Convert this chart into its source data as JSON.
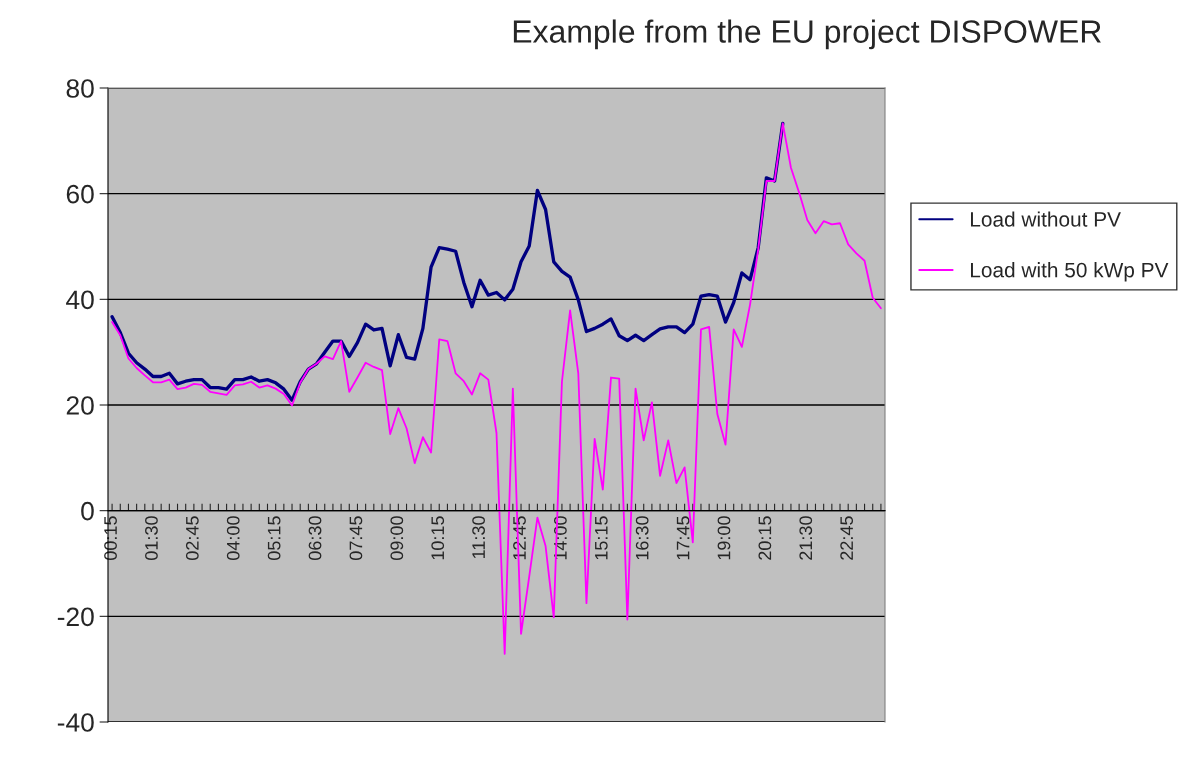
{
  "chart_data": {
    "type": "line",
    "title": "Example from the EU project DISPOWER",
    "categories": [
      "00:15",
      null,
      null,
      null,
      null,
      "01:30",
      null,
      null,
      null,
      null,
      "02:45",
      null,
      null,
      null,
      null,
      "04:00",
      null,
      null,
      null,
      null,
      "05:15",
      null,
      null,
      null,
      null,
      "06:30",
      null,
      null,
      null,
      null,
      "07:45",
      null,
      null,
      null,
      null,
      "09:00",
      null,
      null,
      null,
      null,
      "10:15",
      null,
      null,
      null,
      null,
      "11:30",
      null,
      null,
      null,
      null,
      "12:45",
      null,
      null,
      null,
      null,
      "14:00",
      null,
      null,
      null,
      null,
      "15:15",
      null,
      null,
      null,
      null,
      "16:30",
      null,
      null,
      null,
      null,
      "17:45",
      null,
      null,
      null,
      null,
      "19:00",
      null,
      null,
      null,
      null,
      "20:15",
      null,
      null,
      null,
      null,
      "21:30",
      null,
      null,
      null,
      null,
      "22:45",
      null,
      null,
      null,
      null
    ],
    "series": [
      {
        "name": "Load without PV",
        "color": "#000080",
        "values": [
          36.7,
          33.7,
          29.8,
          28,
          26.8,
          25.4,
          25.4,
          26,
          24,
          24.5,
          24.8,
          24.8,
          23.3,
          23.3,
          23,
          24.8,
          24.8,
          25.3,
          24.5,
          24.8,
          24.2,
          23,
          20.9,
          24.4,
          26.8,
          27.8,
          30,
          32.1,
          32.1,
          29.2,
          31.8,
          35.3,
          34.2,
          34.5,
          27.4,
          33.3,
          29,
          28.7,
          34.5,
          46.1,
          49.8,
          49.5,
          49.1,
          43.2,
          38.6,
          43.6,
          40.8,
          41.3,
          39.9,
          41.9,
          47.1,
          50.1,
          60.6,
          57,
          47.1,
          45.3,
          44.2,
          39.9,
          33.9,
          34.5,
          35.3,
          36.3,
          33.1,
          32.2,
          33.2,
          32.2,
          33.3,
          34.4,
          34.8,
          34.8,
          33.7,
          35.3,
          40.6,
          40.9,
          40.6,
          35.7,
          39.4,
          45,
          43.7,
          49.8,
          63,
          62.4,
          73.3,
          null,
          null,
          null,
          null,
          null,
          null,
          null,
          null,
          null,
          null,
          null,
          null
        ]
      },
      {
        "name": "Load with 50 kWp PV",
        "color": "#ff00ff",
        "values": [
          35.7,
          33.2,
          28.8,
          27,
          25.6,
          24.3,
          24.3,
          24.8,
          23,
          23.3,
          24,
          23.8,
          22.5,
          22.2,
          21.9,
          23.7,
          23.9,
          24.4,
          23.3,
          23.7,
          23.1,
          22.1,
          19.9,
          24.2,
          26.8,
          27.8,
          29.2,
          28.7,
          32.1,
          22.5,
          25.2,
          28,
          27.2,
          26.6,
          14.5,
          19.4,
          15.6,
          9,
          13.9,
          11,
          32.4,
          32.1,
          26,
          24.5,
          22,
          26,
          24.8,
          14.7,
          -27.1,
          23.1,
          -23.3,
          -12.5,
          -1.3,
          -6.7,
          -20.2,
          24.4,
          37.9,
          26,
          -17.5,
          13.6,
          4,
          25.2,
          25,
          -20.6,
          23.1,
          13.3,
          20.5,
          6.6,
          13.3,
          5.2,
          8.2,
          -6,
          34.3,
          34.8,
          18.3,
          12.5,
          34.3,
          31,
          39,
          49.5,
          62.4,
          62.4,
          73.3,
          64.9,
          60.2,
          55,
          52.5,
          54.8,
          54.2,
          54.4,
          50.4,
          48.7,
          47.3,
          40.3,
          38.3
        ]
      }
    ],
    "ylim": [
      -40,
      80
    ],
    "yticks": [
      -40,
      -20,
      0,
      20,
      40,
      60,
      80
    ],
    "grid": "y",
    "legend": "right"
  }
}
